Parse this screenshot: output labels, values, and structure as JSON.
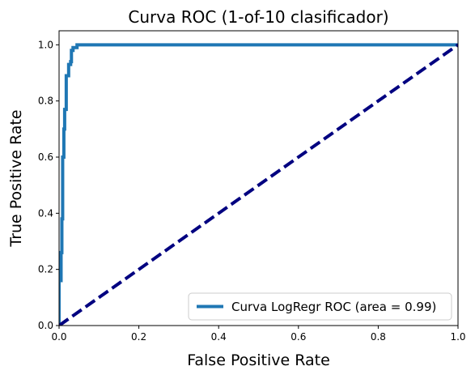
{
  "chart_data": {
    "type": "line",
    "title": "Curva ROC (1-of-10 clasificador)",
    "xlabel": "False Positive Rate",
    "ylabel": "True Positive Rate",
    "xlim": [
      0.0,
      1.0
    ],
    "ylim": [
      0.0,
      1.05
    ],
    "xticks": [
      0.0,
      0.2,
      0.4,
      0.6,
      0.8,
      1.0
    ],
    "yticks": [
      0.0,
      0.2,
      0.4,
      0.6,
      0.8,
      1.0
    ],
    "xtick_labels": [
      "0.0",
      "0.2",
      "0.4",
      "0.6",
      "0.8",
      "1.0"
    ],
    "ytick_labels": [
      "0.0",
      "0.2",
      "0.4",
      "0.6",
      "0.8",
      "1.0"
    ],
    "grid": false,
    "legend_position": "lower-right",
    "series": [
      {
        "name": "Curva LogRegr ROC (area = 0.99)",
        "color": "#1f77b4",
        "style": "solid",
        "x": [
          0.0,
          0.0,
          0.005,
          0.005,
          0.007,
          0.007,
          0.009,
          0.009,
          0.012,
          0.012,
          0.014,
          0.014,
          0.018,
          0.018,
          0.024,
          0.024,
          0.029,
          0.029,
          0.031,
          0.031,
          0.035,
          0.035,
          0.045,
          0.045,
          0.053,
          0.053,
          1.0
        ],
        "y": [
          0.0,
          0.16,
          0.16,
          0.26,
          0.26,
          0.38,
          0.38,
          0.6,
          0.6,
          0.7,
          0.7,
          0.77,
          0.77,
          0.89,
          0.89,
          0.93,
          0.93,
          0.94,
          0.94,
          0.98,
          0.98,
          0.99,
          0.99,
          1.0,
          1.0,
          1.0,
          1.0
        ]
      },
      {
        "name": "",
        "color": "#000080",
        "style": "dashed",
        "x": [
          0.0,
          1.0
        ],
        "y": [
          0.0,
          1.0
        ]
      }
    ],
    "legend_entries": [
      "Curva LogRegr ROC (area = 0.99)"
    ]
  }
}
